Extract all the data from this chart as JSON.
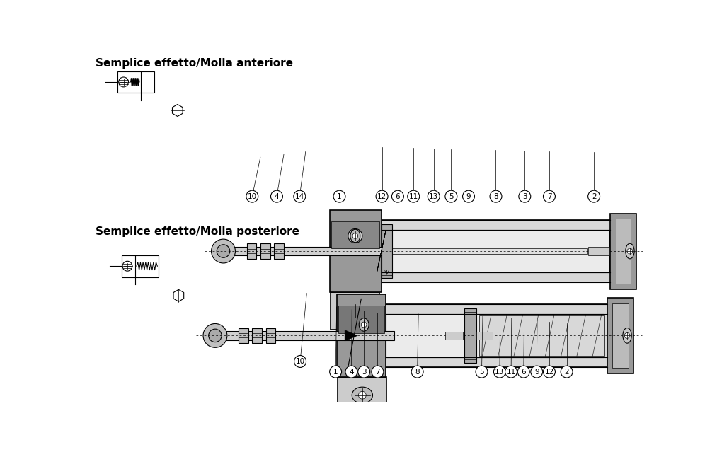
{
  "title1": "Semplice effetto/Molla anteriore",
  "title2": "Semplice effetto/Molla posteriore",
  "bg_color": "#ffffff",
  "lc": "#000000",
  "gray_dark": "#888888",
  "gray_med": "#aaaaaa",
  "gray_light": "#cccccc",
  "gray_vlight": "#e0e0e0",
  "gray_darkest": "#555555",
  "labels1": [
    [
      "10",
      383,
      75,
      395,
      200
    ],
    [
      "1",
      448,
      56,
      450,
      175
    ],
    [
      "4",
      477,
      56,
      478,
      170
    ],
    [
      "3",
      500,
      56,
      500,
      168
    ],
    [
      "7",
      525,
      56,
      525,
      165
    ],
    [
      "8",
      598,
      56,
      600,
      162
    ],
    [
      "5",
      716,
      56,
      718,
      158
    ],
    [
      "13",
      749,
      56,
      750,
      156
    ],
    [
      "11",
      770,
      56,
      771,
      154
    ],
    [
      "6",
      793,
      56,
      794,
      152
    ],
    [
      "9",
      817,
      56,
      818,
      150
    ],
    [
      "12",
      840,
      56,
      840,
      148
    ],
    [
      "2",
      872,
      56,
      872,
      145
    ]
  ],
  "labels2": [
    [
      "10",
      295,
      378,
      310,
      450
    ],
    [
      "4",
      340,
      378,
      353,
      455
    ],
    [
      "14",
      382,
      378,
      393,
      460
    ],
    [
      "1",
      455,
      378,
      455,
      465
    ],
    [
      "12",
      533,
      378,
      533,
      468
    ],
    [
      "6",
      562,
      378,
      562,
      468
    ],
    [
      "11",
      591,
      378,
      591,
      467
    ],
    [
      "13",
      628,
      378,
      628,
      466
    ],
    [
      "5",
      660,
      378,
      660,
      465
    ],
    [
      "9",
      692,
      378,
      692,
      464
    ],
    [
      "8",
      742,
      378,
      742,
      463
    ],
    [
      "3",
      795,
      378,
      795,
      462
    ],
    [
      "7",
      840,
      378,
      840,
      461
    ],
    [
      "2",
      922,
      378,
      922,
      460
    ]
  ]
}
